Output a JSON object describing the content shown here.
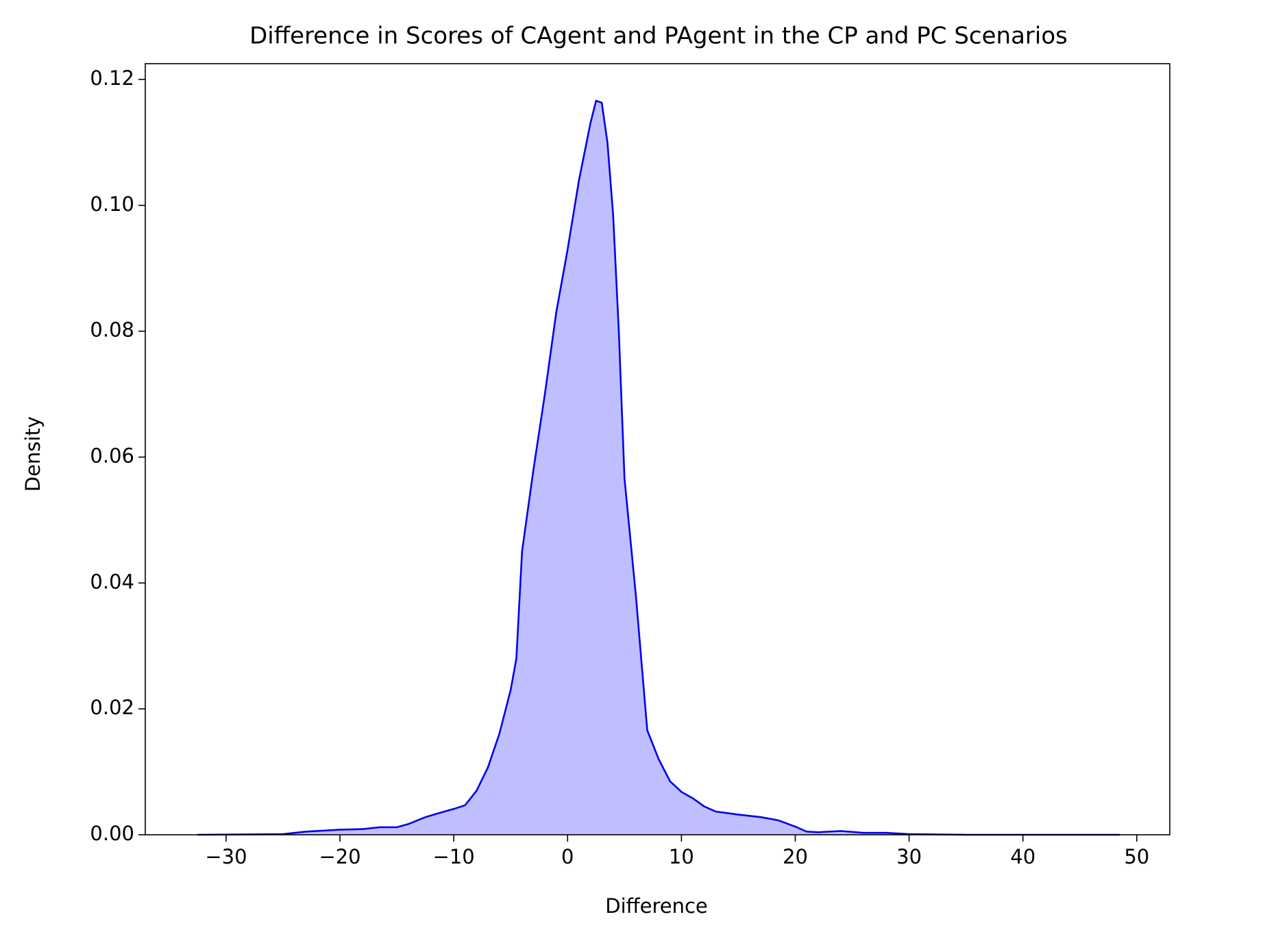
{
  "chart_data": {
    "type": "area",
    "title": "Difference in Scores of CAgent and PAgent in the CP and PC Scenarios",
    "xlabel": "Difference",
    "ylabel": "Density",
    "x": [
      -32.5,
      -25,
      -23,
      -20,
      -18,
      -16.5,
      -15,
      -14,
      -12.5,
      -11,
      -10,
      -9,
      -8,
      -7,
      -6,
      -5,
      -4.5,
      -4,
      -3,
      -2,
      -1,
      0,
      1,
      2,
      2.5,
      3,
      3.5,
      4,
      4.5,
      5,
      6,
      7,
      8,
      9,
      10,
      11,
      12,
      13,
      15,
      17,
      18.5,
      20,
      21,
      22,
      24,
      26,
      28,
      30,
      35,
      40,
      48.5
    ],
    "series": [
      {
        "name": "Density",
        "color": "#0000ee",
        "fill_color": "#bfbfff",
        "values": [
          0,
          0.0001,
          0.0005,
          0.0008,
          0.0009,
          0.0012,
          0.0012,
          0.0017,
          0.0028,
          0.0036,
          0.0041,
          0.0047,
          0.007,
          0.0107,
          0.016,
          0.023,
          0.028,
          0.045,
          0.058,
          0.07,
          0.083,
          0.093,
          0.104,
          0.113,
          0.1166,
          0.1163,
          0.11,
          0.0985,
          0.08,
          0.0566,
          0.038,
          0.0166,
          0.012,
          0.0085,
          0.0068,
          0.0058,
          0.0045,
          0.0037,
          0.0032,
          0.0028,
          0.0023,
          0.0013,
          0.0005,
          0.0004,
          0.0006,
          0.0003,
          0.0003,
          0.0001,
          0,
          0,
          0
        ]
      }
    ],
    "xlim": [
      -37.1,
      52.9
    ],
    "xticks": [
      {
        "value": -30,
        "label": "−30"
      },
      {
        "value": -20,
        "label": "−20"
      },
      {
        "value": -10,
        "label": "−10"
      },
      0,
      10,
      20,
      30,
      40,
      50
    ],
    "ylim": [
      0,
      0.1225
    ],
    "yticks": [
      {
        "value": 0,
        "label": "0.00"
      },
      {
        "value": 0.02,
        "label": "0.02"
      },
      {
        "value": 0.04,
        "label": "0.04"
      },
      {
        "value": 0.06,
        "label": "0.06"
      },
      {
        "value": 0.08,
        "label": "0.08"
      },
      {
        "value": 0.1,
        "label": "0.10"
      },
      {
        "value": 0.12,
        "label": "0.12"
      }
    ],
    "grid": false
  }
}
